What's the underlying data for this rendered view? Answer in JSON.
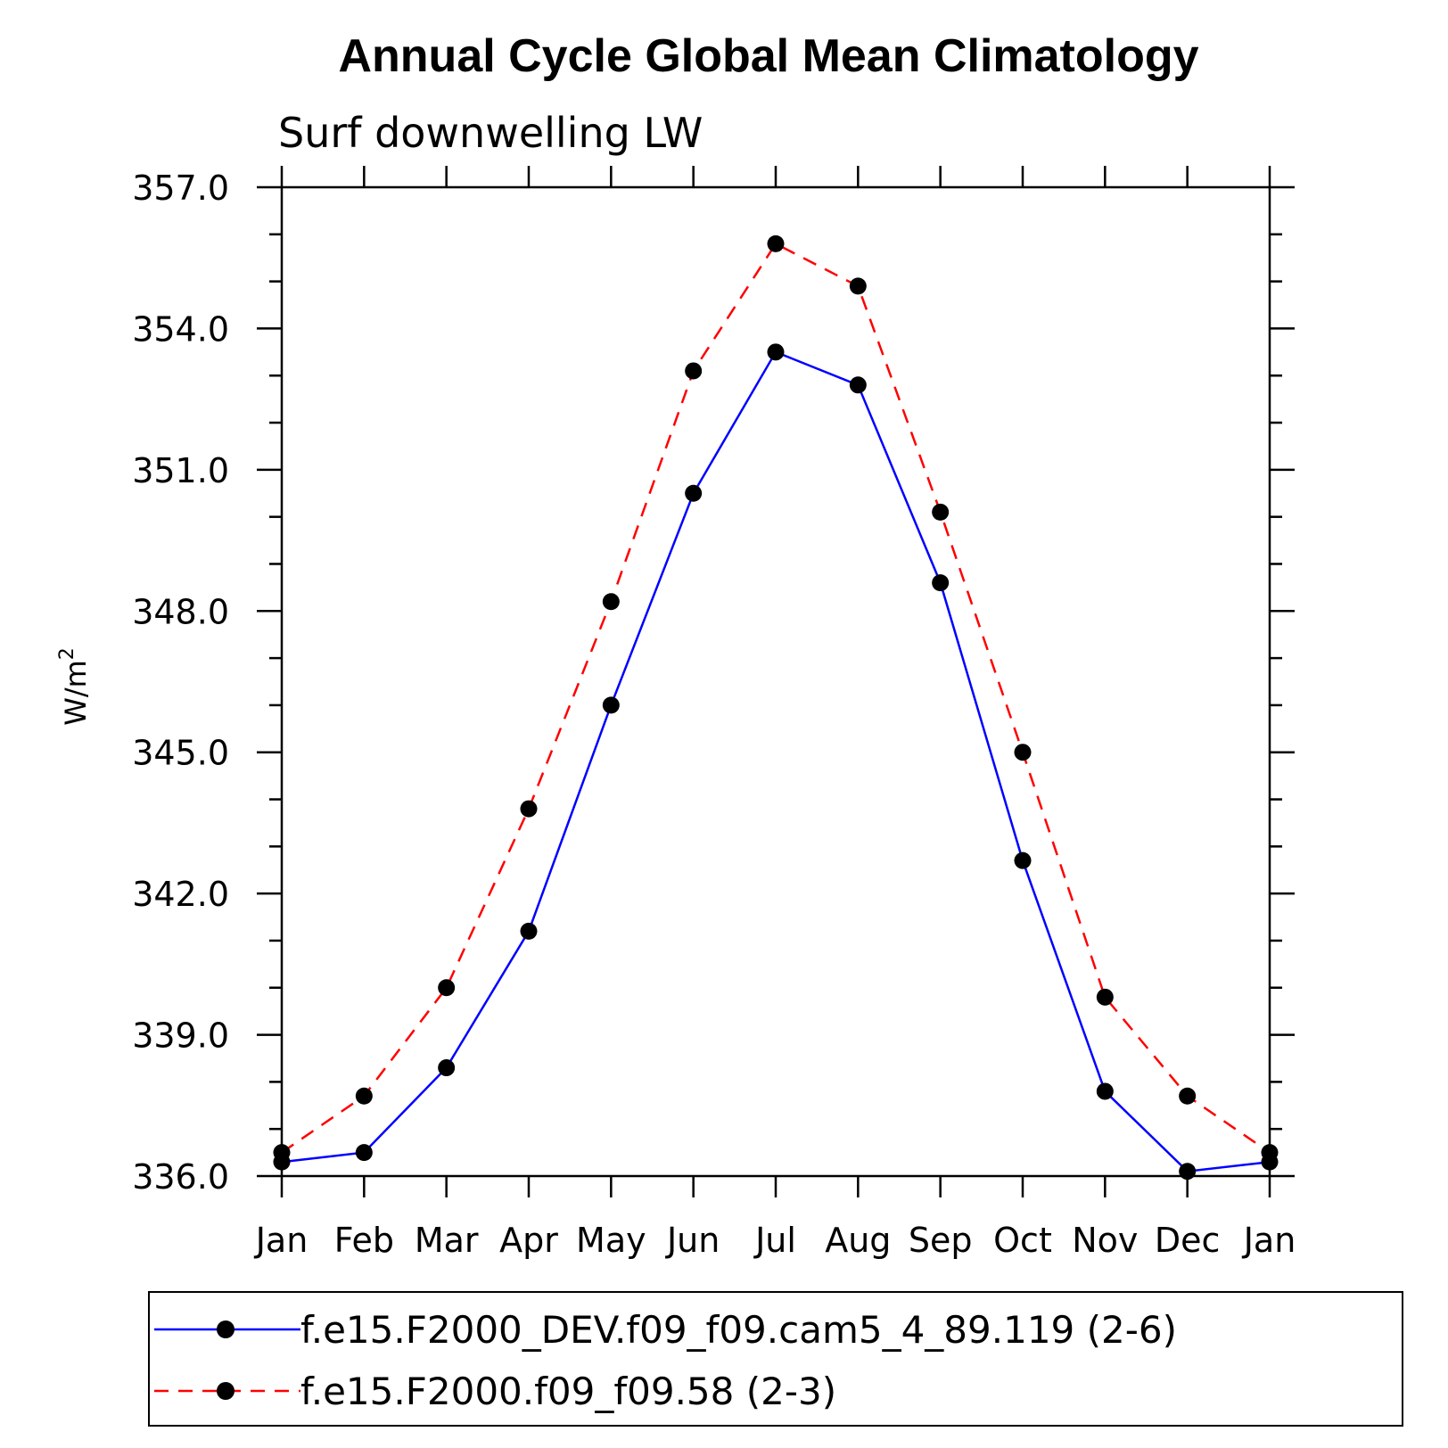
{
  "chart_data": {
    "type": "line",
    "title": "Annual Cycle Global Mean Climatology",
    "subtitle": "Surf downwelling LW",
    "ylabel": "W/m",
    "ylabel_superscript": "2",
    "xlabel": "",
    "ylim": [
      336.0,
      357.0
    ],
    "yticks": [
      "357.0",
      "354.0",
      "351.0",
      "348.0",
      "345.0",
      "342.0",
      "339.0",
      "336.0"
    ],
    "ytick_values": [
      357.0,
      354.0,
      351.0,
      348.0,
      345.0,
      342.0,
      339.0,
      336.0
    ],
    "categories": [
      "Jan",
      "Feb",
      "Mar",
      "Apr",
      "May",
      "Jun",
      "Jul",
      "Aug",
      "Sep",
      "Oct",
      "Nov",
      "Dec",
      "Jan"
    ],
    "grid": false,
    "legend_position": "bottom",
    "series": [
      {
        "name": "f.e15.F2000_DEV.f09_f09.cam5_4_89.119 (2-6)",
        "color": "#0000ff",
        "line_style": "solid",
        "marker": "filled-circle",
        "values": [
          336.3,
          336.5,
          338.3,
          341.2,
          346.0,
          350.5,
          353.5,
          352.8,
          348.6,
          342.7,
          337.8,
          336.1,
          336.3
        ]
      },
      {
        "name": "f.e15.F2000.f09_f09.58 (2-3)",
        "color": "#ff0000",
        "line_style": "dashed",
        "marker": "filled-circle",
        "values": [
          336.5,
          337.7,
          340.0,
          343.8,
          348.2,
          353.1,
          355.8,
          354.9,
          350.1,
          345.0,
          339.8,
          337.7,
          336.5
        ]
      }
    ]
  }
}
